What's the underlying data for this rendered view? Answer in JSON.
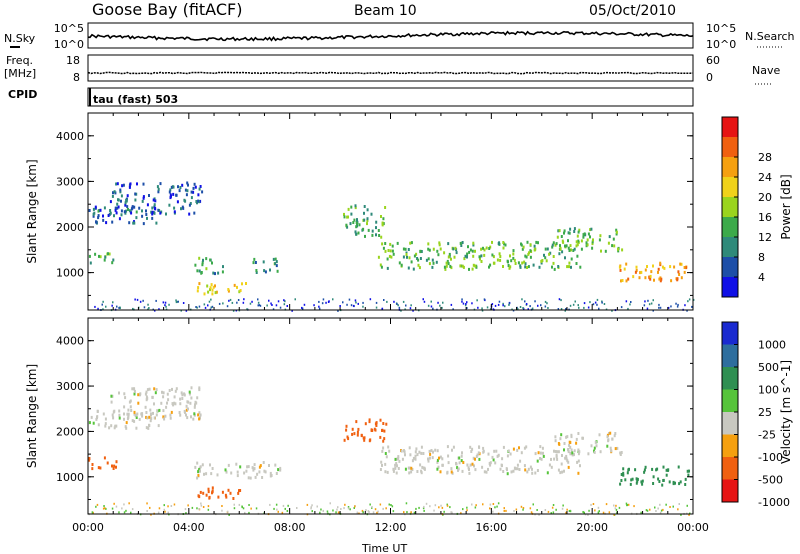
{
  "header": {
    "station": "Goose Bay (fitACF)",
    "beam": "Beam 10",
    "date": "05/Oct/2010"
  },
  "strip": {
    "nsky_label": "N.Sky",
    "nsearch_label": "N.Search",
    "nsky_ticks": [
      "10^5",
      "10^0"
    ],
    "freq_label": "Freq.",
    "freq_unit": "[MHz]",
    "freq_ticks": [
      "18",
      "8"
    ],
    "nave_label": "Nave",
    "nave_ticks": [
      "60",
      "0"
    ],
    "cpid_label": "CPID",
    "cpid_value": "tau (fast) 503"
  },
  "chart_data": [
    {
      "type": "heatmap",
      "title": "",
      "xlabel": "Time UT",
      "ylabel": "Slant Range [km]",
      "x_ticks": [
        "00:00",
        "04:00",
        "08:00",
        "12:00",
        "16:00",
        "20:00",
        "00:00"
      ],
      "x_range_hours": [
        0,
        24
      ],
      "y_ticks": [
        1000,
        2000,
        3000,
        4000
      ],
      "ylim": [
        180,
        4500
      ],
      "colorbar": {
        "label": "Power [dB]",
        "ticks": [
          4,
          8,
          12,
          16,
          20,
          24,
          28
        ],
        "colors": [
          "#1010e6",
          "#1d4fa8",
          "#2f8a7a",
          "#3caa4a",
          "#9ad41e",
          "#f0d21a",
          "#f5a010",
          "#f06010",
          "#e61414"
        ]
      },
      "echo_regions": [
        {
          "t": [
            0.0,
            2.8
          ],
          "r": [
            2100,
            2500
          ],
          "level": 8
        },
        {
          "t": [
            0.8,
            4.5
          ],
          "r": [
            2300,
            3000
          ],
          "level": 6
        },
        {
          "t": [
            0.0,
            1.1
          ],
          "r": [
            1200,
            1450
          ],
          "level": 14
        },
        {
          "t": [
            4.2,
            5.4
          ],
          "r": [
            1000,
            1350
          ],
          "level": 12
        },
        {
          "t": [
            6.5,
            7.5
          ],
          "r": [
            1000,
            1350
          ],
          "level": 12
        },
        {
          "t": [
            4.3,
            6.3
          ],
          "r": [
            550,
            800
          ],
          "level": 22
        },
        {
          "t": [
            10.1,
            11.8
          ],
          "r": [
            1800,
            2500
          ],
          "level": 14
        },
        {
          "t": [
            11.5,
            19.5
          ],
          "r": [
            1100,
            1700
          ],
          "level": 15
        },
        {
          "t": [
            18.5,
            21.2
          ],
          "r": [
            1500,
            2000
          ],
          "level": 15
        },
        {
          "t": [
            21.0,
            23.8
          ],
          "r": [
            850,
            1250
          ],
          "level": 26
        }
      ]
    },
    {
      "type": "heatmap",
      "title": "",
      "xlabel": "Time UT",
      "ylabel": "Slant Range [km]",
      "x_ticks": [
        "00:00",
        "04:00",
        "08:00",
        "12:00",
        "16:00",
        "20:00",
        "00:00"
      ],
      "x_range_hours": [
        0,
        24
      ],
      "y_ticks": [
        1000,
        2000,
        3000,
        4000
      ],
      "ylim": [
        180,
        4500
      ],
      "colorbar": {
        "label": "Velocity [m s^-1]",
        "ticks": [
          1000,
          500,
          100,
          25,
          -25,
          -100,
          -500,
          -1000
        ],
        "colors": [
          "#1a2ad0",
          "#2e6e9e",
          "#2f8f52",
          "#56c43a",
          "#c8c8c0",
          "#f5a010",
          "#f06010",
          "#e61414"
        ]
      },
      "echo_regions": [
        {
          "t": [
            0.0,
            2.8
          ],
          "r": [
            2100,
            2500
          ],
          "velocity": 0
        },
        {
          "t": [
            0.8,
            4.5
          ],
          "r": [
            2300,
            3000
          ],
          "velocity": 0
        },
        {
          "t": [
            0.0,
            1.1
          ],
          "r": [
            1200,
            1450
          ],
          "velocity": -300
        },
        {
          "t": [
            4.2,
            7.6
          ],
          "r": [
            1000,
            1350
          ],
          "velocity": 0
        },
        {
          "t": [
            4.3,
            6.3
          ],
          "r": [
            550,
            800
          ],
          "velocity": -150
        },
        {
          "t": [
            10.1,
            11.8
          ],
          "r": [
            1800,
            2300
          ],
          "velocity": -400
        },
        {
          "t": [
            11.5,
            19.5
          ],
          "r": [
            1100,
            1700
          ],
          "velocity": 0
        },
        {
          "t": [
            18.5,
            21.2
          ],
          "r": [
            1500,
            2000
          ],
          "velocity": 0
        },
        {
          "t": [
            21.0,
            23.8
          ],
          "r": [
            850,
            1250
          ],
          "velocity": 150
        }
      ]
    }
  ]
}
